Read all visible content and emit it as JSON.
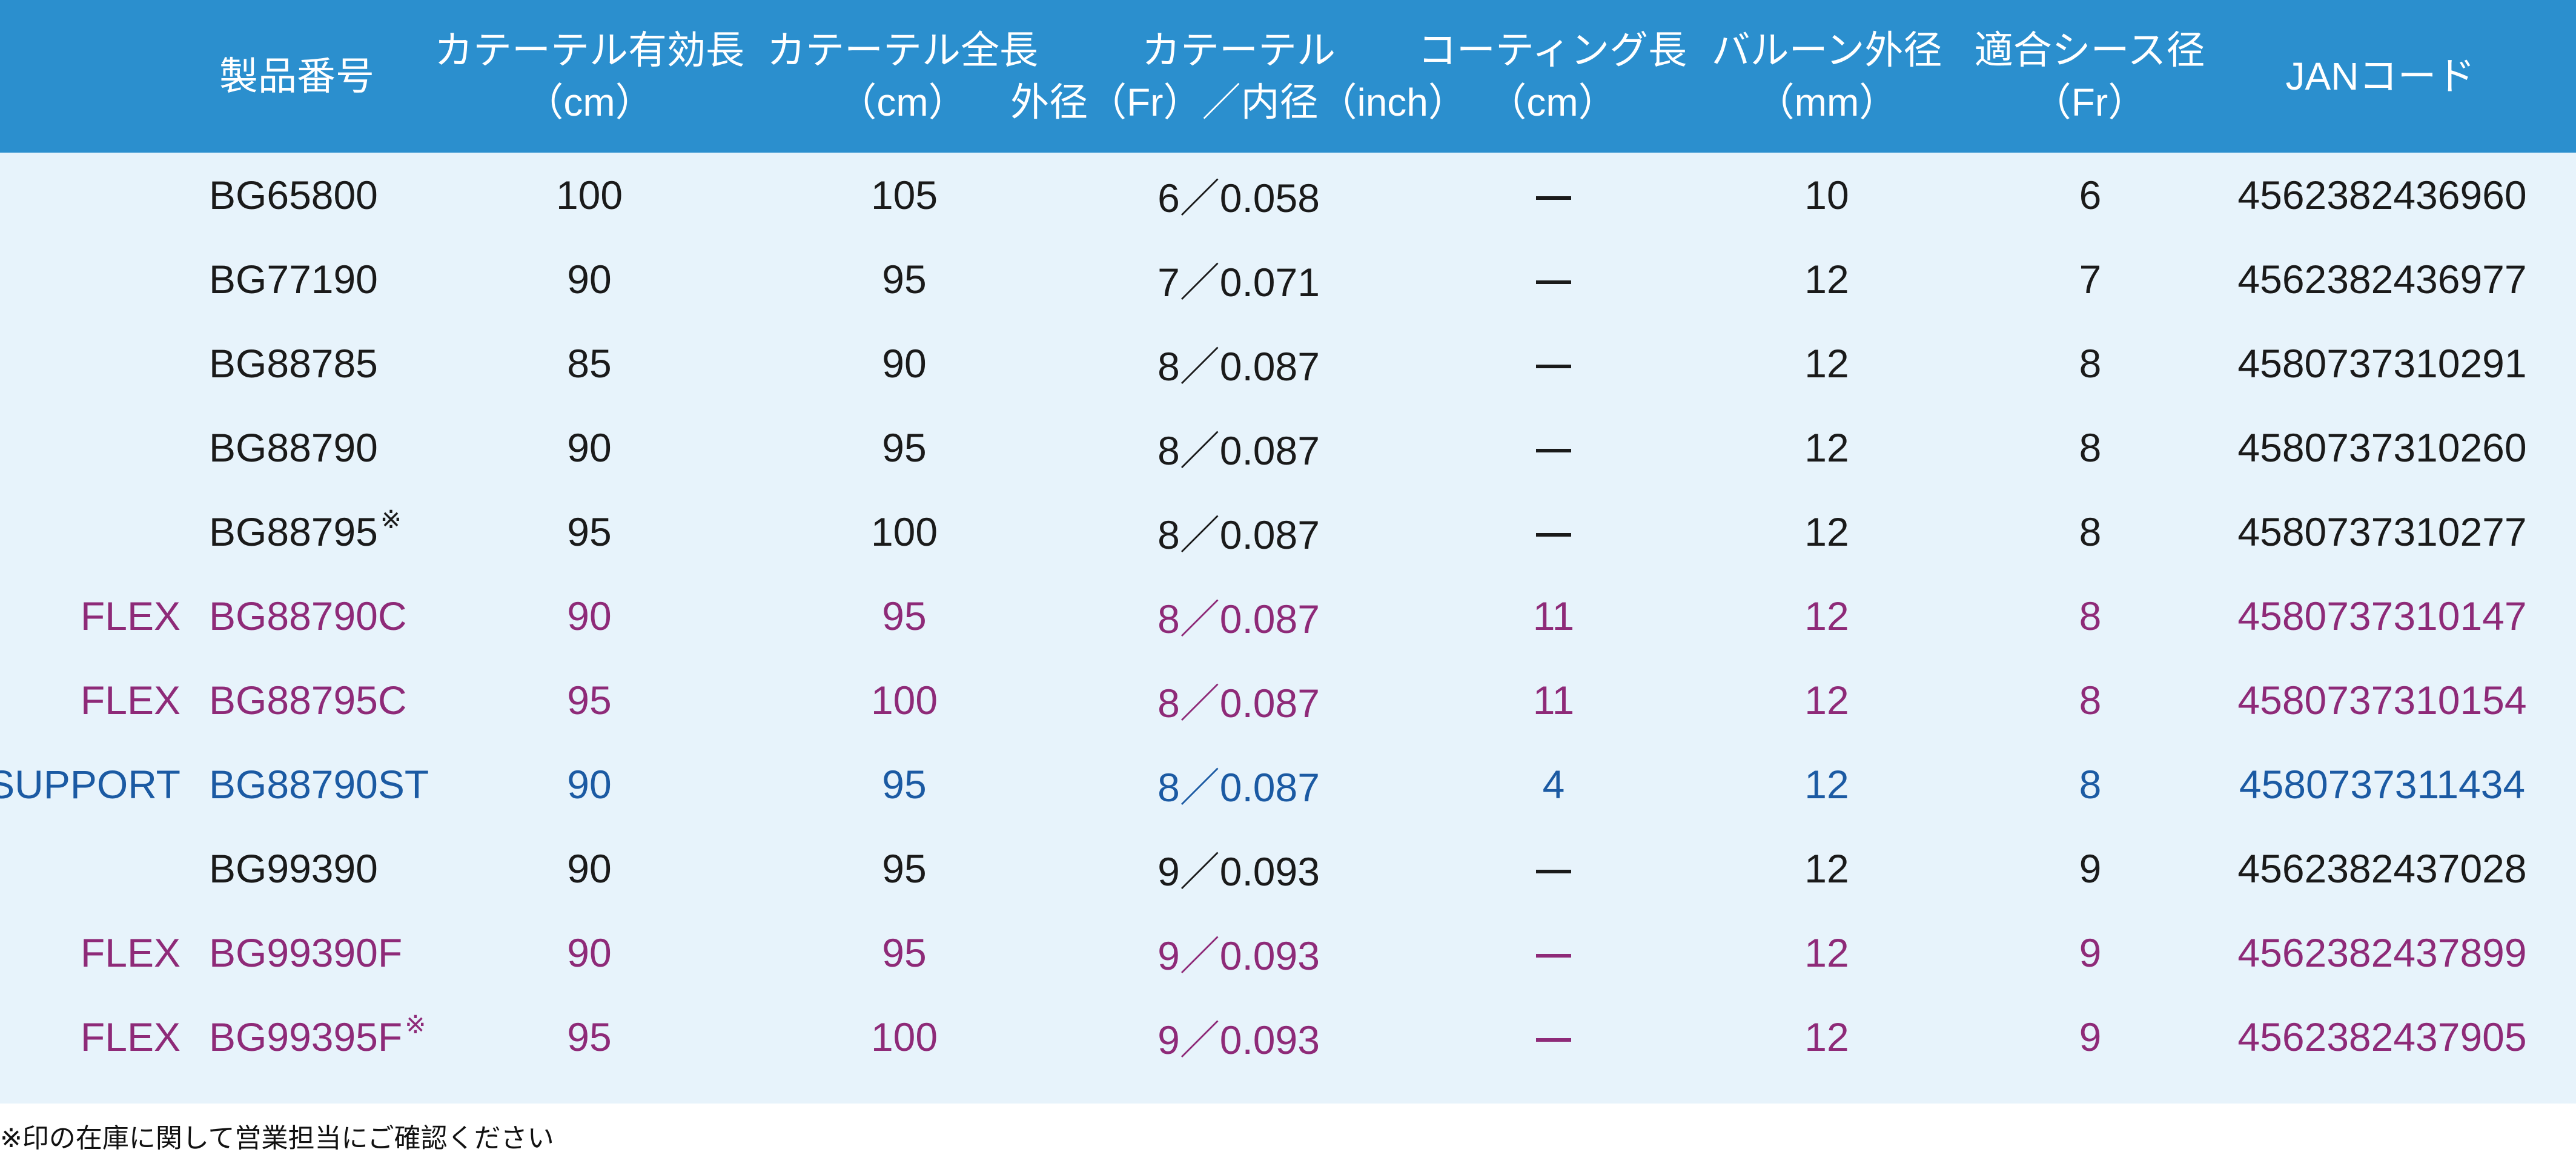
{
  "header": {
    "product_no": [
      "製品番号"
    ],
    "effective_length": [
      "カテーテル有効長",
      "（cm）"
    ],
    "total_length": [
      "カテーテル全長",
      "（cm）"
    ],
    "diameter": [
      "カテーテル",
      "外径（Fr）／内径（inch）"
    ],
    "coating_length": [
      "コーティング長",
      "（cm）"
    ],
    "balloon_diameter": [
      "バルーン外径",
      "（mm）"
    ],
    "sheath_size": [
      "適合シース径",
      "（Fr）"
    ],
    "jan_code": [
      "JANコード"
    ]
  },
  "colors": {
    "header_bg": "#2b8fce",
    "body_bg": "#e7f3fb",
    "standard": "#1a1a1a",
    "flex": "#8e2a78",
    "support": "#1b5aa3"
  },
  "rows": [
    {
      "variant": "",
      "type": "standard",
      "product_no": "BG65800",
      "mark": "",
      "effective_length": "100",
      "total_length": "105",
      "diameter": "6／0.058",
      "coating_length": "—",
      "balloon_diameter": "10",
      "sheath_size": "6",
      "jan_code": "4562382436960"
    },
    {
      "variant": "",
      "type": "standard",
      "product_no": "BG77190",
      "mark": "",
      "effective_length": "90",
      "total_length": "95",
      "diameter": "7／0.071",
      "coating_length": "—",
      "balloon_diameter": "12",
      "sheath_size": "7",
      "jan_code": "4562382436977"
    },
    {
      "variant": "",
      "type": "standard",
      "product_no": "BG88785",
      "mark": "",
      "effective_length": "85",
      "total_length": "90",
      "diameter": "8／0.087",
      "coating_length": "—",
      "balloon_diameter": "12",
      "sheath_size": "8",
      "jan_code": "4580737310291"
    },
    {
      "variant": "",
      "type": "standard",
      "product_no": "BG88790",
      "mark": "",
      "effective_length": "90",
      "total_length": "95",
      "diameter": "8／0.087",
      "coating_length": "—",
      "balloon_diameter": "12",
      "sheath_size": "8",
      "jan_code": "4580737310260"
    },
    {
      "variant": "",
      "type": "standard",
      "product_no": "BG88795",
      "mark": "※",
      "effective_length": "95",
      "total_length": "100",
      "diameter": "8／0.087",
      "coating_length": "—",
      "balloon_diameter": "12",
      "sheath_size": "8",
      "jan_code": "4580737310277"
    },
    {
      "variant": "FLEX",
      "type": "flex",
      "product_no": "BG88790C",
      "mark": "",
      "effective_length": "90",
      "total_length": "95",
      "diameter": "8／0.087",
      "coating_length": "11",
      "balloon_diameter": "12",
      "sheath_size": "8",
      "jan_code": "4580737310147"
    },
    {
      "variant": "FLEX",
      "type": "flex",
      "product_no": "BG88795C",
      "mark": "",
      "effective_length": "95",
      "total_length": "100",
      "diameter": "8／0.087",
      "coating_length": "11",
      "balloon_diameter": "12",
      "sheath_size": "8",
      "jan_code": "4580737310154"
    },
    {
      "variant": "SUPPORT",
      "type": "support",
      "product_no": "BG88790ST",
      "mark": "",
      "effective_length": "90",
      "total_length": "95",
      "diameter": "8／0.087",
      "coating_length": "4",
      "balloon_diameter": "12",
      "sheath_size": "8",
      "jan_code": "4580737311434"
    },
    {
      "variant": "",
      "type": "standard",
      "product_no": "BG99390",
      "mark": "",
      "effective_length": "90",
      "total_length": "95",
      "diameter": "9／0.093",
      "coating_length": "—",
      "balloon_diameter": "12",
      "sheath_size": "9",
      "jan_code": "4562382437028"
    },
    {
      "variant": "FLEX",
      "type": "flex",
      "product_no": "BG99390F",
      "mark": "",
      "effective_length": "90",
      "total_length": "95",
      "diameter": "9／0.093",
      "coating_length": "—",
      "balloon_diameter": "12",
      "sheath_size": "9",
      "jan_code": "4562382437899"
    },
    {
      "variant": "FLEX",
      "type": "flex",
      "product_no": "BG99395F",
      "mark": "※",
      "effective_length": "95",
      "total_length": "100",
      "diameter": "9／0.093",
      "coating_length": "—",
      "balloon_diameter": "12",
      "sheath_size": "9",
      "jan_code": "4562382437905"
    }
  ],
  "footnote": "※印の在庫に関して営業担当にご確認ください"
}
